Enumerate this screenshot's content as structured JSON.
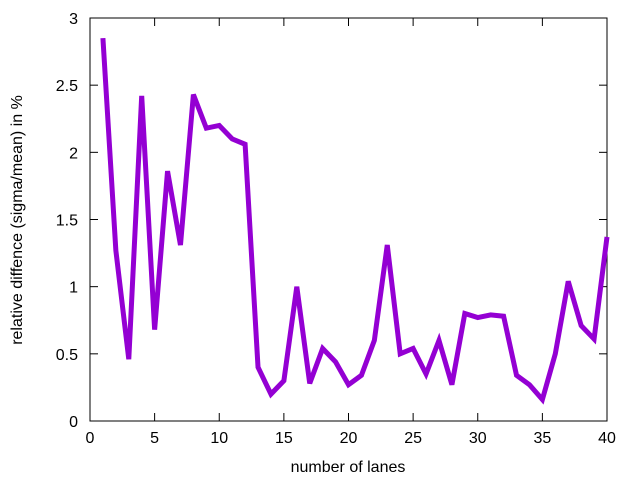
{
  "chart_data": {
    "type": "line",
    "xlabel": "number of lanes",
    "ylabel": "relative diffence (sigma/mean) in %",
    "xlim": [
      0,
      40
    ],
    "ylim": [
      0,
      3
    ],
    "xticks": [
      0,
      5,
      10,
      15,
      20,
      25,
      30,
      35,
      40
    ],
    "yticks": [
      0,
      0.5,
      1,
      1.5,
      2,
      2.5,
      3
    ],
    "xtick_labels": [
      "0",
      "5",
      "10",
      "15",
      "20",
      "25",
      "30",
      "35",
      "40"
    ],
    "ytick_labels": [
      "0",
      "0.5",
      "1",
      "1.5",
      "2",
      "2.5",
      "3"
    ],
    "grid": false,
    "series": [
      {
        "color": "#9400d3",
        "x": [
          1,
          2,
          3,
          4,
          5,
          6,
          7,
          8,
          9,
          10,
          11,
          12,
          13,
          14,
          15,
          16,
          17,
          18,
          19,
          20,
          21,
          22,
          23,
          24,
          25,
          26,
          27,
          28,
          29,
          30,
          31,
          32,
          33,
          34,
          35,
          36,
          37,
          38,
          39,
          40
        ],
        "y": [
          2.85,
          1.27,
          0.46,
          2.42,
          0.68,
          1.86,
          1.31,
          2.43,
          2.18,
          2.2,
          2.1,
          2.06,
          0.4,
          0.2,
          0.3,
          1.0,
          0.28,
          0.54,
          0.44,
          0.27,
          0.34,
          0.6,
          1.31,
          0.5,
          0.54,
          0.35,
          0.6,
          0.27,
          0.8,
          0.77,
          0.79,
          0.78,
          0.34,
          0.27,
          0.16,
          0.5,
          1.04,
          0.71,
          0.61,
          1.37
        ]
      }
    ]
  }
}
